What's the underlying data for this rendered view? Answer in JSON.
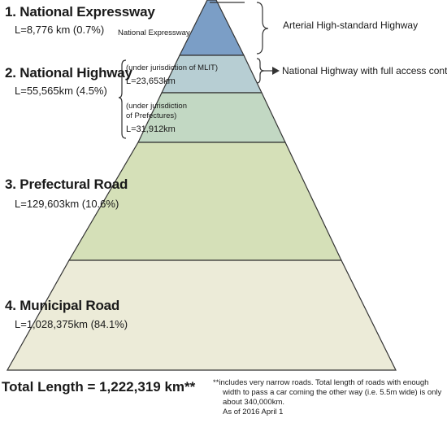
{
  "levels": {
    "expressway": {
      "title": "1. National Expressway",
      "length": "L=8,776 km (0.7%)",
      "inline_label": "National Expressway",
      "color": "#7b9ec6"
    },
    "highway": {
      "title": "2. National Highway",
      "length": "L=55,565km (4.5%)",
      "mlit": {
        "jurisdiction": "(under jurisdiction of MLIT)",
        "length": "L=23,653km",
        "color": "#b7ced3"
      },
      "prefectures": {
        "jurisdiction_line1": "(under jurisdiction",
        "jurisdiction_line2": "of Prefectures)",
        "length": "L=31,912km",
        "color": "#c2d8c3"
      }
    },
    "prefectural": {
      "title": "3. Prefectural Road",
      "length": "L=129,603km (10.6%)",
      "color": "#d5e0b8"
    },
    "municipal": {
      "title": "4. Municipal Road",
      "length": "L=1,028,375km (84.1%)",
      "color": "#ecebd8"
    }
  },
  "side_labels": {
    "arterial": "Arterial High-standard Highway",
    "full_access": "National Highway with full access control"
  },
  "total": "Total Length = 1,222,319 km**",
  "notes": {
    "line1": "**includes very narrow roads. Total length of roads with enough",
    "line2": "width to pass a car coming the other way (i.e. 5.5m wide) is only",
    "line3": "about 340,000km.",
    "line4": "As of 2016 April 1"
  }
}
